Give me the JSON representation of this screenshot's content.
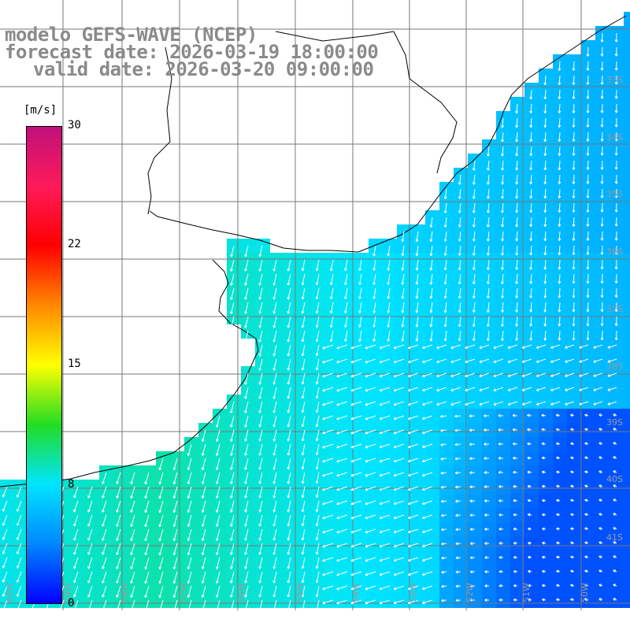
{
  "title": {
    "line1": "modelo GEFS-WAVE (NCEP)",
    "line2": "forecast date: 2026-03-19 18:00:00",
    "line3": "valid date: 2026-03-20 09:00:00"
  },
  "colorbar": {
    "unit": "[m/s]",
    "ticks": [
      "30",
      "22",
      "15",
      "8",
      "0"
    ],
    "min": 0,
    "max": 30,
    "colors": [
      "#0000ff",
      "#0088ff",
      "#00e5ff",
      "#22dd22",
      "#ffff00",
      "#ff8800",
      "#ff0000",
      "#ff1a5a",
      "#c0107a"
    ]
  },
  "map": {
    "latitude_labels": [
      "33S",
      "34S",
      "35S",
      "36S",
      "37S",
      "38S",
      "39S",
      "40S",
      "41S"
    ],
    "longitude_labels": [
      "60W",
      "59W",
      "58W",
      "57W",
      "56W",
      "55W",
      "54W",
      "53W",
      "52W",
      "51W",
      "50W"
    ],
    "field": "wind speed",
    "field_colors": {
      "land": "#ffffff",
      "coast": "#000000",
      "grid": "#777777",
      "arrow": "#ffffff"
    }
  }
}
